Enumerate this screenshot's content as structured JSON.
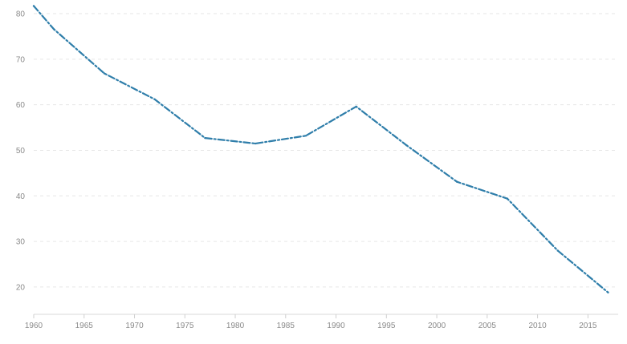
{
  "chart_data": {
    "type": "line",
    "title": "",
    "xlabel": "",
    "ylabel": "",
    "xlim": [
      1960,
      2018
    ],
    "ylim": [
      14,
      83
    ],
    "x_ticks": [
      1960,
      1965,
      1970,
      1975,
      1980,
      1985,
      1990,
      1995,
      2000,
      2005,
      2010,
      2015
    ],
    "y_ticks": [
      20,
      30,
      40,
      50,
      60,
      70,
      80
    ],
    "grid": true,
    "legend": "none",
    "series": [
      {
        "color": "#2f7eaa",
        "points": [
          {
            "x": 1960,
            "y": 81.7
          },
          {
            "x": 1962,
            "y": 76.6
          },
          {
            "x": 1967,
            "y": 66.9
          },
          {
            "x": 1972,
            "y": 61.2
          },
          {
            "x": 1977,
            "y": 52.7
          },
          {
            "x": 1982,
            "y": 51.5
          },
          {
            "x": 1987,
            "y": 53.2
          },
          {
            "x": 1992,
            "y": 59.6
          },
          {
            "x": 1997,
            "y": 51.1
          },
          {
            "x": 2002,
            "y": 43.1
          },
          {
            "x": 2007,
            "y": 39.4
          },
          {
            "x": 2012,
            "y": 28.0
          },
          {
            "x": 2017,
            "y": 18.8
          }
        ]
      }
    ]
  }
}
